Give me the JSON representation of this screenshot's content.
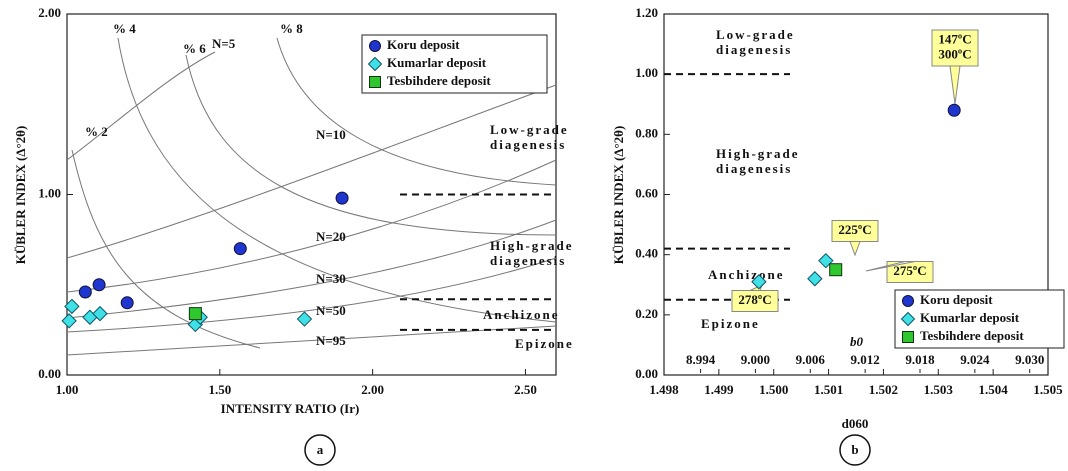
{
  "chart_data": [
    {
      "type": "scatter",
      "panel_label": "a",
      "xlabel": "INTENSITY RATIO (Ir)",
      "ylabel": "KÜBLER INDEX (Δ°2θ)",
      "xlim": [
        1.0,
        2.6
      ],
      "ylim": [
        0,
        2.0
      ],
      "xticks": [
        {
          "value": 1.0,
          "label": "1.00"
        },
        {
          "value": 1.5,
          "label": "1.50"
        },
        {
          "value": 2.0,
          "label": "2.00"
        },
        {
          "value": 2.5,
          "label": "2.50"
        }
      ],
      "yticks": [
        {
          "value": 0,
          "label": "0.00"
        },
        {
          "value": 1.0,
          "label": "1.00"
        },
        {
          "value": 2.0,
          "label": "2.00"
        }
      ],
      "legend": "upper right",
      "series": [
        {
          "name": "Koru deposit",
          "color": "#1f35d0",
          "marker": "circle",
          "x": [
            1.06,
            1.105,
            1.197,
            1.567,
            1.9
          ],
          "values": [
            0.46,
            0.5,
            0.4,
            0.7,
            0.98
          ]
        },
        {
          "name": "Kumarlar deposit",
          "color": "#3fe0e6",
          "marker": "diamond",
          "x": [
            1.007,
            1.016,
            1.075,
            1.108,
            1.42,
            1.436,
            1.777
          ],
          "values": [
            0.3,
            0.38,
            0.32,
            0.34,
            0.28,
            0.32,
            0.31
          ]
        },
        {
          "name": "Tesbihdere deposit",
          "color": "#2ec82e",
          "marker": "square",
          "x": [
            1.42
          ],
          "values": [
            0.34
          ]
        }
      ],
      "boundaries": [
        1.0,
        0.42,
        0.25
      ],
      "zones": [
        [
          "Low-grade",
          "diagenesis"
        ],
        [
          "High-grade",
          "diagenesis"
        ],
        [
          "Anchizone"
        ],
        [
          "Epizone"
        ]
      ],
      "annotations": [
        "% 2",
        "% 4",
        "% 6",
        "N=5",
        "% 8",
        "N=10",
        "N=20",
        "N=30",
        "N=50",
        "N=95"
      ]
    },
    {
      "type": "scatter",
      "panel_label": "b",
      "xlabel": "d060",
      "x2label": "b0",
      "ylabel": "KÜBLER INDEX (Δ°2θ)",
      "xlim": [
        1.498,
        1.505
      ],
      "ylim": [
        0,
        1.2
      ],
      "x2lim": [
        8.99,
        9.032
      ],
      "xticks": [
        1.498,
        1.499,
        {
          "value": 1.5,
          "label": "1.500"
        },
        1.501,
        1.502,
        1.503,
        1.504,
        1.505
      ],
      "x2ticks": [
        8.994,
        {
          "value": 9.0,
          "label": "9.000"
        },
        9.006,
        9.012,
        9.018,
        9.024,
        {
          "value": 9.03,
          "label": "9.030"
        }
      ],
      "yticks": [
        {
          "value": 0,
          "label": "0.00"
        },
        {
          "value": 0.2,
          "label": "0.20"
        },
        {
          "value": 0.4,
          "label": "0.40"
        },
        {
          "value": 0.6,
          "label": "0.60"
        },
        {
          "value": 0.8,
          "label": "0.80"
        },
        {
          "value": 1.0,
          "label": "1.00"
        },
        {
          "value": 1.2,
          "label": "1.20"
        }
      ],
      "legend": "lower right",
      "series": [
        {
          "name": "Koru deposit",
          "color": "#1f35d0",
          "marker": "circle",
          "x": [
            1.50329
          ],
          "values": [
            0.88
          ]
        },
        {
          "name": "Kumarlar deposit",
          "color": "#3fe0e6",
          "marker": "diamond",
          "x": [
            1.49973,
            1.50075,
            1.50095
          ],
          "values": [
            0.31,
            0.32,
            0.38
          ]
        },
        {
          "name": "Tesbihdere deposit",
          "color": "#2ec82e",
          "marker": "square",
          "x": [
            1.50113
          ],
          "values": [
            0.35
          ]
        }
      ],
      "boundaries": [
        1.0,
        0.42,
        0.25
      ],
      "zones": [
        [
          "Low-grade",
          "diagenesis"
        ],
        [
          "High-grade",
          "diagenesis"
        ],
        [
          "Anchizone"
        ],
        [
          "Epizone"
        ]
      ],
      "annotations": [
        [
          "147ºC",
          "300ºC"
        ],
        [
          "225ºC"
        ],
        [
          "275ºC"
        ],
        [
          "278ºC"
        ]
      ]
    }
  ]
}
